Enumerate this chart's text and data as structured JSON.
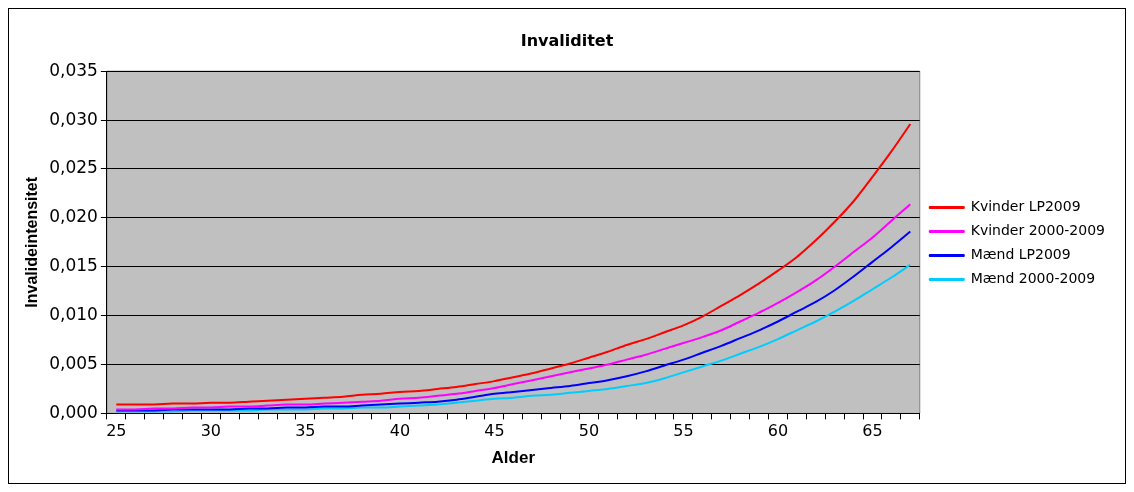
{
  "chart_data": {
    "type": "line",
    "title": "Invaliditet",
    "xlabel": "Alder",
    "ylabel": "Invalideintensitet",
    "categories": [
      "25",
      null,
      null,
      null,
      null,
      "30",
      null,
      null,
      null,
      null,
      "35",
      null,
      null,
      null,
      null,
      "40",
      null,
      null,
      null,
      null,
      "45",
      null,
      null,
      null,
      null,
      "50",
      null,
      null,
      null,
      null,
      "55",
      null,
      null,
      null,
      null,
      "60",
      null,
      null,
      null,
      null,
      "65",
      null,
      null
    ],
    "series": [
      {
        "name": "Kvinder LP2009",
        "color": "#ff0000",
        "values": [
          0.0009,
          0.0009,
          0.0009,
          0.001,
          0.001,
          0.0011,
          0.0011,
          0.0012,
          0.0013,
          0.0014,
          0.0015,
          0.0016,
          0.0017,
          0.0019,
          0.002,
          0.0022,
          0.0023,
          0.0025,
          0.0027,
          0.003,
          0.0033,
          0.0037,
          0.0041,
          0.0046,
          0.0051,
          0.0057,
          0.0063,
          0.007,
          0.0076,
          0.0083,
          0.009,
          0.0099,
          0.011,
          0.0121,
          0.0133,
          0.0146,
          0.016,
          0.0177,
          0.0196,
          0.0217,
          0.0242,
          0.0268,
          0.0296
        ]
      },
      {
        "name": "Kvinder 2000-2009",
        "color": "#ff00ff",
        "values": [
          0.0004,
          0.0004,
          0.0005,
          0.0005,
          0.0006,
          0.0006,
          0.0007,
          0.0007,
          0.0008,
          0.0009,
          0.0009,
          0.001,
          0.0011,
          0.0012,
          0.0013,
          0.0015,
          0.0016,
          0.0018,
          0.002,
          0.0023,
          0.0026,
          0.003,
          0.0034,
          0.0038,
          0.0042,
          0.0046,
          0.005,
          0.0055,
          0.006,
          0.0066,
          0.0072,
          0.0078,
          0.0085,
          0.0094,
          0.0103,
          0.0113,
          0.0124,
          0.0136,
          0.015,
          0.0165,
          0.018,
          0.0197,
          0.0214
        ]
      },
      {
        "name": "Mænd LP2009",
        "color": "#0000ff",
        "values": [
          0.0003,
          0.0003,
          0.0003,
          0.0004,
          0.0004,
          0.0004,
          0.0004,
          0.0005,
          0.0005,
          0.0006,
          0.0006,
          0.0007,
          0.0007,
          0.0008,
          0.0009,
          0.001,
          0.0011,
          0.0012,
          0.0014,
          0.0017,
          0.002,
          0.0022,
          0.0024,
          0.0026,
          0.0028,
          0.0031,
          0.0034,
          0.0038,
          0.0043,
          0.0049,
          0.0055,
          0.0062,
          0.0069,
          0.0077,
          0.0085,
          0.0094,
          0.0104,
          0.0114,
          0.0126,
          0.014,
          0.0155,
          0.017,
          0.0186
        ]
      },
      {
        "name": "Mænd 2000-2009",
        "color": "#00ccff",
        "values": [
          0.0002,
          0.0002,
          0.0002,
          0.0002,
          0.0003,
          0.0003,
          0.0003,
          0.0003,
          0.0004,
          0.0004,
          0.0004,
          0.0005,
          0.0005,
          0.0006,
          0.0006,
          0.0007,
          0.0008,
          0.0009,
          0.0011,
          0.0013,
          0.0015,
          0.0016,
          0.0018,
          0.0019,
          0.0021,
          0.0023,
          0.0025,
          0.0028,
          0.0031,
          0.0036,
          0.0042,
          0.0048,
          0.0054,
          0.0061,
          0.0068,
          0.0076,
          0.0085,
          0.0094,
          0.0104,
          0.0115,
          0.0127,
          0.0139,
          0.0152
        ]
      }
    ],
    "ylim": [
      0,
      0.035
    ],
    "yticks": [
      {
        "value": 0,
        "label": "0,000"
      },
      {
        "value": 0.005,
        "label": "0,005"
      },
      {
        "value": 0.01,
        "label": "0,010"
      },
      {
        "value": 0.015,
        "label": "0,015"
      },
      {
        "value": 0.02,
        "label": "0,020"
      },
      {
        "value": 0.025,
        "label": "0,025"
      },
      {
        "value": 0.03,
        "label": "0,030"
      },
      {
        "value": 0.035,
        "label": "0,035"
      }
    ],
    "grid": "y",
    "legend": "right",
    "marker": "none",
    "line_style": "solid"
  }
}
